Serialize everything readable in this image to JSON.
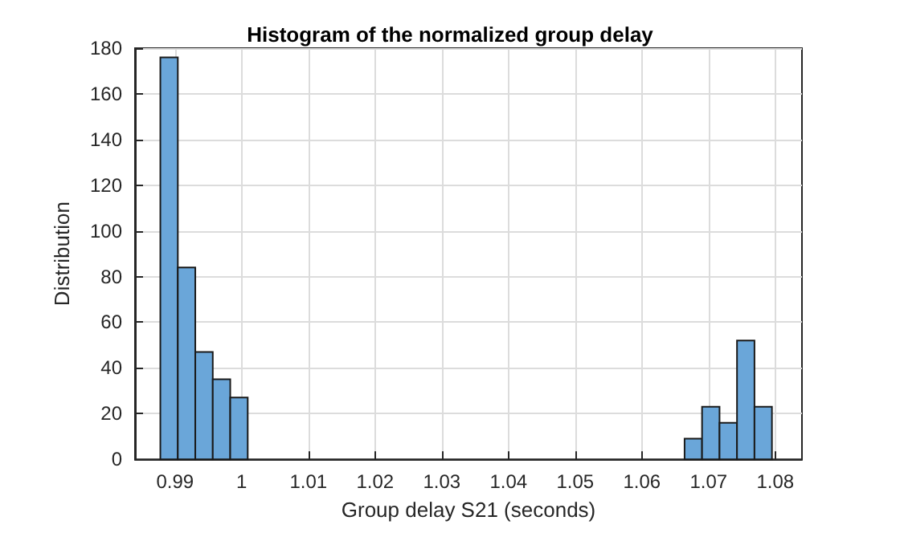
{
  "chart_data": {
    "type": "histogram",
    "title": "Histogram of the normalized group delay",
    "xlabel": "Group delay S21 (seconds)",
    "ylabel": "Distribution",
    "bins": [
      0.9878,
      0.99042,
      0.99304,
      0.99566,
      0.99828,
      1.0009,
      1.00352,
      1.00614,
      1.00876,
      1.01138,
      1.014,
      1.01662,
      1.01924,
      1.02186,
      1.02448,
      1.0271,
      1.02972,
      1.03234,
      1.03496,
      1.03758,
      1.0402,
      1.04282,
      1.04544,
      1.04806,
      1.05068,
      1.0533,
      1.05592,
      1.05854,
      1.06116,
      1.06378,
      1.0664,
      1.06902,
      1.07164,
      1.07426,
      1.07688,
      1.0795
    ],
    "values": [
      176,
      84,
      47,
      35,
      27,
      0,
      0,
      0,
      0,
      0,
      0,
      0,
      0,
      0,
      0,
      0,
      0,
      0,
      0,
      0,
      0,
      0,
      0,
      0,
      0,
      0,
      0,
      0,
      0,
      0,
      9,
      23,
      16,
      52,
      23
    ],
    "color": "#6aa6d9",
    "xlim": [
      0.984,
      1.084
    ],
    "xticks": [
      0.99,
      1,
      1.01,
      1.02,
      1.03,
      1.04,
      1.05,
      1.06,
      1.07,
      1.08
    ],
    "ylim": [
      0,
      180
    ],
    "yticks": [
      0,
      20,
      40,
      60,
      80,
      100,
      120,
      140,
      160,
      180
    ],
    "grid": true
  }
}
